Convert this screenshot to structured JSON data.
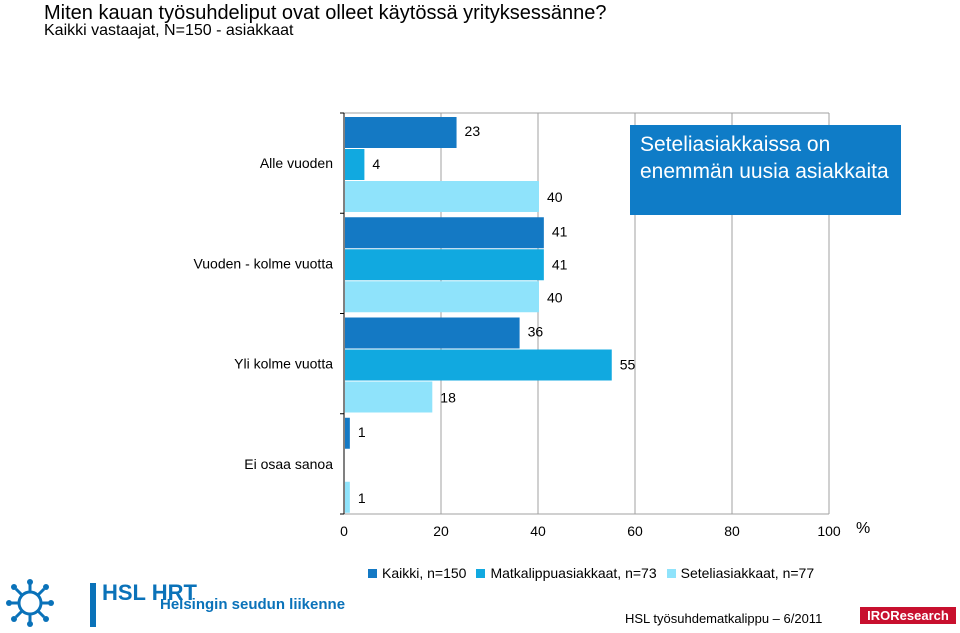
{
  "header": {
    "title": "Miten kauan työsuhdeliput ovat olleet käytössä yrityksessänne?",
    "subtitle": "Kaikki vastaajat, N=150 - asiakkaat"
  },
  "callout": {
    "text": "Seteliasiakkaissa on enemmän uusia asiakkaita"
  },
  "footer": {
    "brand_short": "HSL HRT",
    "brand_name": "Helsingin seudun liikenne",
    "survey": "HSL työsuhdematkalippu – 6/2011",
    "agency": "IROResearch"
  },
  "chart_data": {
    "type": "bar",
    "orientation": "horizontal",
    "title": "Miten kauan työsuhdeliput ovat olleet käytössä yrityksessänne?",
    "subtitle": "Kaikki vastaajat, N=150 - asiakkaat",
    "categories": [
      "Alle vuoden",
      "Vuoden - kolme vuotta",
      "Yli kolme vuotta",
      "Ei osaa sanoa"
    ],
    "series": [
      {
        "name": "Kaikki, n=150",
        "color": "#1479c4",
        "values": [
          23,
          41,
          36,
          1
        ]
      },
      {
        "name": "Matkalippuasiakkaat, n=73",
        "color": "#11a9e0",
        "values": [
          4,
          41,
          55,
          null
        ]
      },
      {
        "name": "Seteliasiakkaat, n=77",
        "color": "#8fe3fb",
        "values": [
          40,
          40,
          18,
          1
        ]
      }
    ],
    "xlim": [
      0,
      100
    ],
    "xticks": [
      0,
      20,
      40,
      60,
      80,
      100
    ],
    "xunit": "%",
    "grid": true,
    "legend_position": "bottom"
  }
}
